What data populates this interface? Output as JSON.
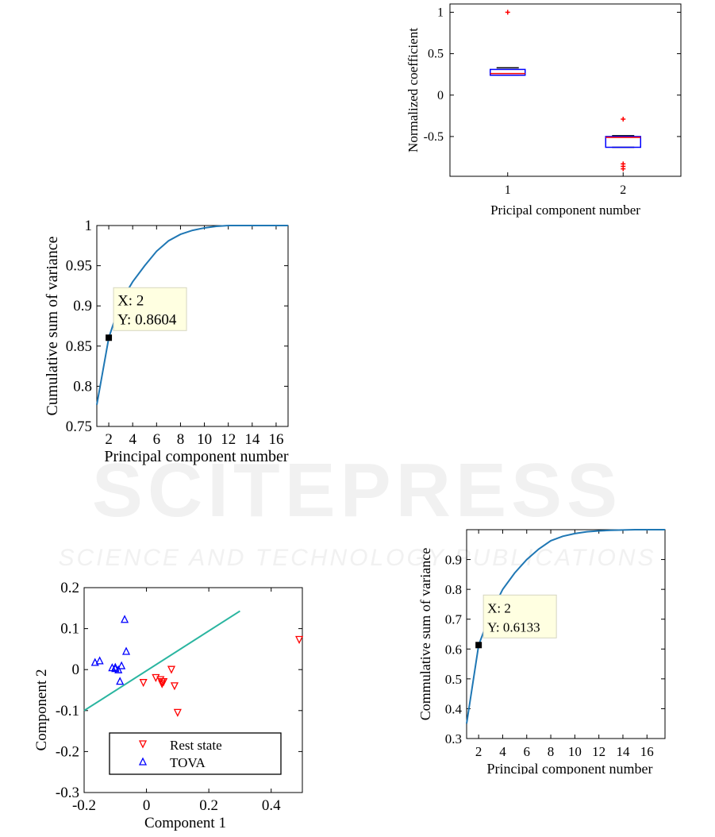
{
  "watermark": {
    "line1": "SCITEPRESS",
    "line2": "SCIENCE AND TECHNOLOGY PUBLICATIONS"
  },
  "chart_data": [
    {
      "id": "boxplot",
      "type": "box",
      "xlabel": "Pricipal component number",
      "ylabel": "Normalized coefficient",
      "categories": [
        "1",
        "2"
      ],
      "ylim": [
        -0.98,
        1.1
      ],
      "yticks": [
        1,
        0.5,
        0,
        -0.5
      ],
      "ytick_labels": [
        "1",
        "0.5",
        "0",
        "-0.5"
      ],
      "boxes": [
        {
          "category": "1",
          "q1": 0.24,
          "median": 0.26,
          "q3": 0.31,
          "whisker_low": 0.24,
          "whisker_high": 0.33,
          "outliers": [
            1.0
          ]
        },
        {
          "category": "2",
          "q1": -0.63,
          "median": -0.51,
          "q3": -0.5,
          "whisker_low": -0.63,
          "whisker_high": -0.49,
          "outliers": [
            -0.29,
            -0.83,
            -0.86,
            -0.89
          ]
        }
      ],
      "colors": {
        "box": "#0000ff",
        "median": "#ff0000",
        "outlier": "#ff0000"
      }
    },
    {
      "id": "cumvar1",
      "type": "line",
      "xlabel": "Principal component number",
      "ylabel": "Cumulative sum of variance",
      "xlim": [
        1,
        17
      ],
      "ylim": [
        0.75,
        1.0
      ],
      "xticks": [
        2,
        4,
        6,
        8,
        10,
        12,
        14,
        16
      ],
      "yticks": [
        0.75,
        0.8,
        0.85,
        0.9,
        0.95,
        1
      ],
      "ytick_labels": [
        "0.75",
        "0.8",
        "0.85",
        "0.9",
        "0.95",
        "1"
      ],
      "x": [
        1,
        2,
        3,
        4,
        5,
        6,
        7,
        8,
        9,
        10,
        11,
        12,
        13,
        14,
        15,
        16,
        17
      ],
      "y": [
        0.777,
        0.8604,
        0.905,
        0.93,
        0.95,
        0.968,
        0.981,
        0.989,
        0.994,
        0.997,
        0.999,
        1.0,
        1.0,
        1.0,
        1.0,
        1.0,
        1.0
      ],
      "datatip": {
        "x": 2,
        "y": 0.8604,
        "label_x": "X: 2",
        "label_y": "Y: 0.8604"
      },
      "colors": {
        "line": "#1f77b4",
        "tip_bg": "#ffffe1"
      }
    },
    {
      "id": "scatter",
      "type": "scatter",
      "xlabel": "Component 1",
      "ylabel": "Component 2",
      "xlim": [
        -0.2,
        0.5
      ],
      "ylim": [
        -0.3,
        0.2
      ],
      "xticks": [
        -0.2,
        0,
        0.2,
        0.4
      ],
      "xtick_labels": [
        "-0.2",
        "0",
        "0.2",
        "0.4"
      ],
      "yticks": [
        0.2,
        0.1,
        0,
        -0.1,
        -0.2,
        -0.3
      ],
      "ytick_labels": [
        "0.2",
        "0.1",
        "0",
        "-0.1",
        "-0.2",
        "-0.3"
      ],
      "legend_position": "bottom",
      "series": [
        {
          "name": "Rest state",
          "marker": "triangle-down",
          "color": "#ff0000",
          "points": [
            [
              -0.01,
              -0.032
            ],
            [
              0.03,
              -0.02
            ],
            [
              0.045,
              -0.025
            ],
            [
              0.05,
              -0.03
            ],
            [
              0.05,
              -0.035
            ],
            [
              0.055,
              -0.03
            ],
            [
              0.08,
              0.0
            ],
            [
              0.09,
              -0.04
            ],
            [
              0.1,
              -0.105
            ],
            [
              0.49,
              0.073
            ]
          ]
        },
        {
          "name": "TOVA",
          "marker": "triangle-up",
          "color": "#0000ff",
          "points": [
            [
              -0.165,
              0.018
            ],
            [
              -0.15,
              0.022
            ],
            [
              -0.11,
              0.005
            ],
            [
              -0.1,
              0.003
            ],
            [
              -0.1,
              0.006
            ],
            [
              -0.09,
              0.0
            ],
            [
              -0.085,
              -0.028
            ],
            [
              -0.08,
              0.01
            ],
            [
              -0.07,
              0.123
            ],
            [
              -0.065,
              0.045
            ]
          ]
        }
      ],
      "boundary": {
        "x": [
          -0.2,
          0.3
        ],
        "y": [
          -0.1,
          0.143
        ],
        "color": "#2ab5a0"
      }
    },
    {
      "id": "cumvar2",
      "type": "line",
      "xlabel": "Principal component number",
      "ylabel": "Commulative sum of variance",
      "xlim": [
        1,
        17.5
      ],
      "ylim": [
        0.3,
        1.0
      ],
      "xticks": [
        2,
        4,
        6,
        8,
        10,
        12,
        14,
        16
      ],
      "yticks": [
        0.3,
        0.4,
        0.5,
        0.6,
        0.7,
        0.8,
        0.9
      ],
      "ytick_labels": [
        "0.3",
        "0.4",
        "0.5",
        "0.6",
        "0.7",
        "0.8",
        "0.9"
      ],
      "x": [
        1,
        2,
        3,
        4,
        5,
        6,
        7,
        8,
        9,
        10,
        11,
        12,
        13,
        14,
        15,
        16,
        17,
        17.5
      ],
      "y": [
        0.35,
        0.6133,
        0.72,
        0.8,
        0.855,
        0.9,
        0.935,
        0.963,
        0.978,
        0.987,
        0.993,
        0.996,
        0.998,
        0.999,
        1.0,
        1.0,
        1.0,
        1.0
      ],
      "datatip": {
        "x": 2,
        "y": 0.6133,
        "label_x": "X: 2",
        "label_y": "Y: 0.6133"
      },
      "colors": {
        "line": "#1f77b4",
        "tip_bg": "#ffffe1"
      }
    }
  ]
}
